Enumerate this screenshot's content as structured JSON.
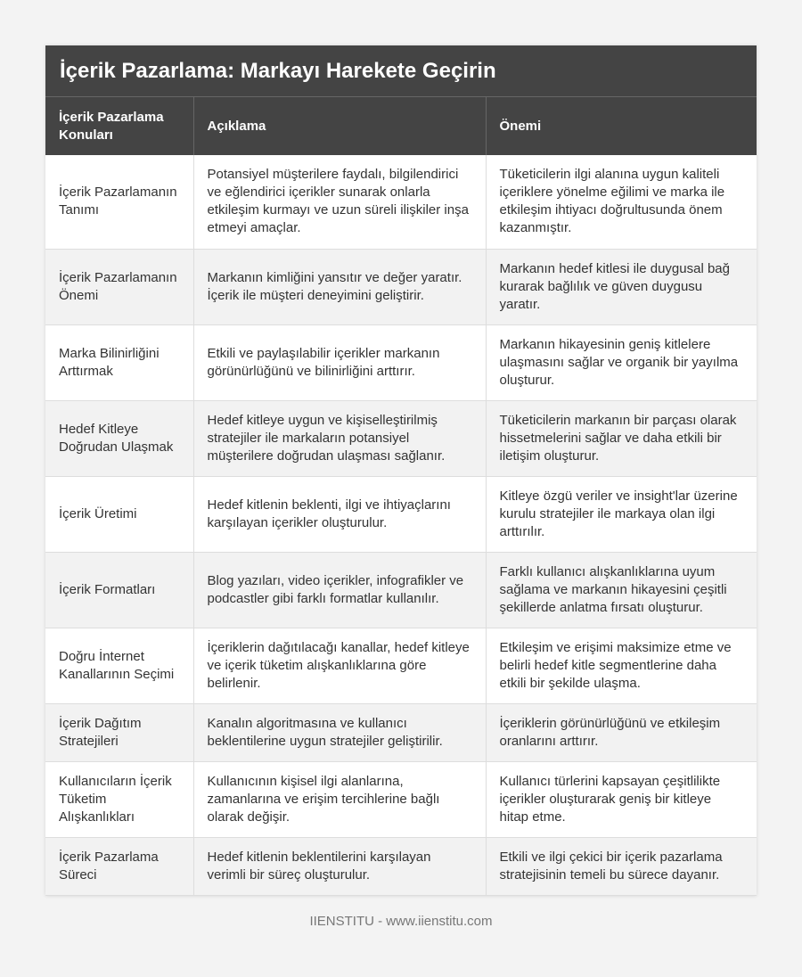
{
  "title": "İçerik Pazarlama: Markayı Harekete Geçirin",
  "headers": [
    "İçerik Pazarlama Konuları",
    "Açıklama",
    "Önemi"
  ],
  "rows": [
    [
      "İçerik Pazarlamanın Tanımı",
      "Potansiyel müşterilere faydalı, bilgilendirici ve eğlendirici içerikler sunarak onlarla etkileşim kurmayı ve uzun süreli ilişkiler inşa etmeyi amaçlar.",
      "Tüketicilerin ilgi alanına uygun kaliteli içeriklere yönelme eğilimi ve marka ile etkileşim ihtiyacı doğrultusunda önem kazanmıştır."
    ],
    [
      "İçerik Pazarlamanın Önemi",
      "Markanın kimliğini yansıtır ve değer yaratır. İçerik ile müşteri deneyimini geliştirir.",
      "Markanın hedef kitlesi ile duygusal bağ kurarak bağlılık ve güven duygusu yaratır."
    ],
    [
      "Marka Bilinirliğini Arttırmak",
      "Etkili ve paylaşılabilir içerikler markanın görünürlüğünü ve bilinirliğini arttırır.",
      "Markanın hikayesinin geniş kitlelere ulaşmasını sağlar ve organik bir yayılma oluşturur."
    ],
    [
      "Hedef Kitleye Doğrudan Ulaşmak",
      "Hedef kitleye uygun ve kişiselleştirilmiş stratejiler ile markaların potansiyel müşterilere doğrudan ulaşması sağlanır.",
      "Tüketicilerin markanın bir parçası olarak hissetmelerini sağlar ve daha etkili bir iletişim oluşturur."
    ],
    [
      "İçerik Üretimi",
      "Hedef kitlenin beklenti, ilgi ve ihtiyaçlarını karşılayan içerikler oluşturulur.",
      "Kitleye özgü veriler ve insight'lar üzerine kurulu stratejiler ile markaya olan ilgi arttırılır."
    ],
    [
      "İçerik Formatları",
      "Blog yazıları, video içerikler, infografikler ve podcastler gibi farklı formatlar kullanılır.",
      "Farklı kullanıcı alışkanlıklarına uyum sağlama ve markanın hikayesini çeşitli şekillerde anlatma fırsatı oluşturur."
    ],
    [
      "Doğru İnternet Kanallarının Seçimi",
      "İçeriklerin dağıtılacağı kanallar, hedef kitleye ve içerik tüketim alışkanlıklarına göre belirlenir.",
      "Etkileşim ve erişimi maksimize etme ve belirli hedef kitle segmentlerine daha etkili bir şekilde ulaşma."
    ],
    [
      "İçerik Dağıtım Stratejileri",
      "Kanalın algoritmasına ve kullanıcı beklentilerine uygun stratejiler geliştirilir.",
      "İçeriklerin görünürlüğünü ve etkileşim oranlarını arttırır."
    ],
    [
      "Kullanıcıların İçerik Tüketim Alışkanlıkları",
      "Kullanıcının kişisel ilgi alanlarına, zamanlarına ve erişim tercihlerine bağlı olarak değişir.",
      "Kullanıcı türlerini kapsayan çeşitlilikte içerikler oluşturarak geniş bir kitleye hitap etme."
    ],
    [
      "İçerik Pazarlama Süreci",
      "Hedef kitlenin beklentilerini karşılayan verimli bir süreç oluşturulur.",
      "Etkili ve ilgi çekici bir içerik pazarlama stratejisinin temeli bu sürece dayanır."
    ]
  ],
  "footer": "IIENSTITU - www.iienstitu.com"
}
